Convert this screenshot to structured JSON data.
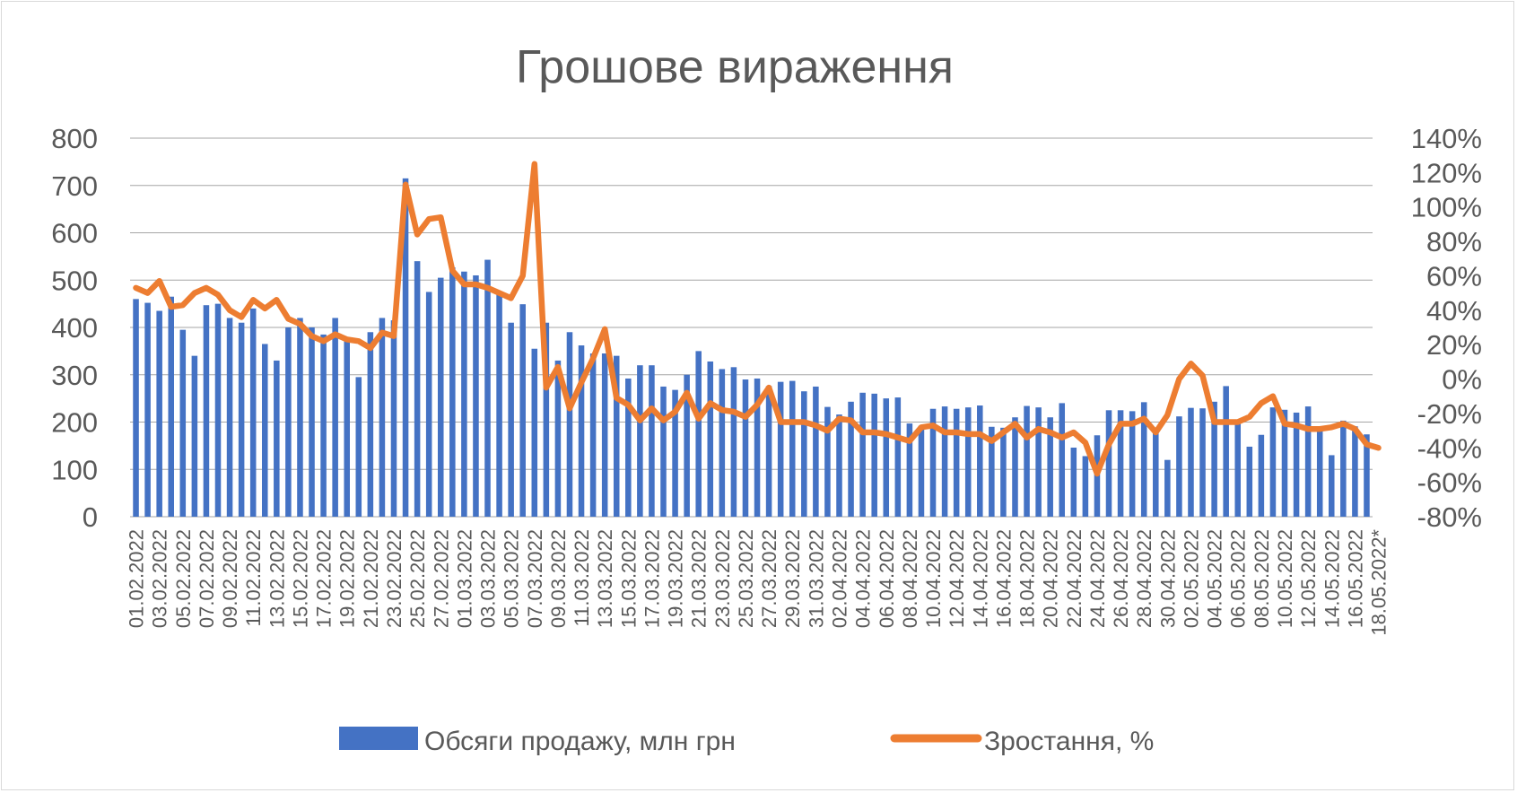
{
  "chart_data": {
    "type": "bar+line",
    "title": "Грошове вираження",
    "series": [
      {
        "name": "Обсяги продажу, млн грн",
        "type": "bar",
        "axis": "left",
        "color": "#4472C4",
        "values": [
          460,
          452,
          435,
          465,
          395,
          340,
          447,
          450,
          420,
          410,
          440,
          365,
          330,
          400,
          420,
          400,
          385,
          420,
          375,
          295,
          390,
          420,
          415,
          715,
          540,
          475,
          505,
          527,
          518,
          510,
          543,
          470,
          410,
          449,
          355,
          410,
          330,
          390,
          362,
          345,
          345,
          340,
          292,
          320,
          320,
          275,
          268,
          300,
          350,
          328,
          312,
          316,
          290,
          292,
          276,
          285,
          287,
          265,
          275,
          232,
          216,
          243,
          262,
          260,
          250,
          252,
          197,
          192,
          228,
          233,
          228,
          231,
          235,
          190,
          188,
          210,
          234,
          231,
          210,
          240,
          146,
          128,
          172,
          225,
          225,
          223,
          242,
          182,
          120,
          212,
          230,
          229,
          243,
          276,
          198,
          148,
          173,
          231,
          226,
          220,
          233,
          182,
          130,
          203,
          191,
          174
        ]
      },
      {
        "name": "Зростання, %",
        "type": "line",
        "axis": "right",
        "color": "#ED7D31",
        "values": [
          53,
          50,
          57,
          42,
          43,
          50,
          53,
          49,
          40,
          36,
          46,
          41,
          46,
          35,
          32,
          25,
          22,
          26,
          23,
          22,
          18,
          27,
          25,
          113,
          84,
          93,
          94,
          63,
          55,
          55,
          53,
          50,
          47,
          60,
          125,
          -5,
          7,
          -17,
          -2,
          12,
          29,
          -11,
          -15,
          -24,
          -17,
          -24,
          -19,
          -8,
          -23,
          -14,
          -18,
          -19,
          -22,
          -15,
          -5,
          -25,
          -25,
          -25,
          -27,
          -30,
          -23,
          -24,
          -31,
          -31,
          -32,
          -34,
          -36,
          -28,
          -27,
          -31,
          -31,
          -32,
          -32,
          -36,
          -31,
          -26,
          -34,
          -29,
          -31,
          -34,
          -31,
          -37,
          -55,
          -38,
          -26,
          -26,
          -23,
          -31,
          -21,
          0,
          9,
          2,
          -25,
          -25,
          -25,
          -22,
          -14,
          -10,
          -26,
          -27,
          -29,
          -29,
          -28,
          -26,
          -29,
          -38,
          -40
        ]
      }
    ],
    "x_tick_labels": [
      "01.02.2022",
      "03.02.2022",
      "05.02.2022",
      "07.02.2022",
      "09.02.2022",
      "11.02.2022",
      "13.02.2022",
      "15.02.2022",
      "17.02.2022",
      "19.02.2022",
      "21.02.2022",
      "23.02.2022",
      "25.02.2022",
      "27.02.2022",
      "01.03.2022",
      "03.03.2022",
      "05.03.2022",
      "07.03.2022",
      "09.03.2022",
      "11.03.2022",
      "13.03.2022",
      "15.03.2022",
      "17.03.2022",
      "19.03.2022",
      "21.03.2022",
      "23.03.2022",
      "25.03.2022",
      "27.03.2022",
      "29.03.2022",
      "31.03.2022",
      "02.04.2022",
      "04.04.2022",
      "06.04.2022",
      "08.04.2022",
      "10.04.2022",
      "12.04.2022",
      "14.04.2022",
      "16.04.2022",
      "18.04.2022",
      "20.04.2022",
      "22.04.2022",
      "24.04.2022",
      "26.04.2022",
      "28.04.2022",
      "30.04.2022",
      "02.05.2022",
      "04.05.2022",
      "06.05.2022",
      "08.05.2022",
      "10.05.2022",
      "12.05.2022",
      "14.05.2022",
      "16.05.2022",
      "18.05.2022*"
    ],
    "y_left": {
      "min": 0,
      "max": 800,
      "step": 100,
      "labels": [
        "0",
        "100",
        "200",
        "300",
        "400",
        "500",
        "600",
        "700",
        "800"
      ]
    },
    "y_right": {
      "min": -80,
      "max": 140,
      "step": 20,
      "labels": [
        "-80%",
        "-60%",
        "-40%",
        "-20%",
        "0%",
        "20%",
        "40%",
        "60%",
        "80%",
        "100%",
        "120%",
        "140%"
      ]
    },
    "grid": "horizontal",
    "legend_position": "bottom",
    "gridline_color": "#a6a6a6"
  }
}
